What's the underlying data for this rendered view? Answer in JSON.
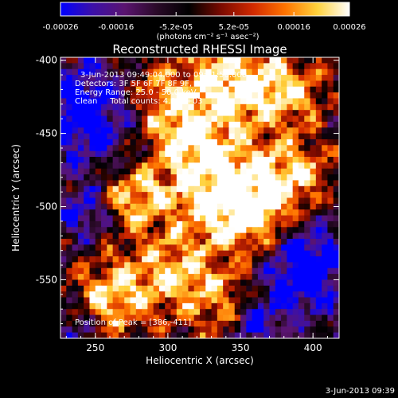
{
  "chart_data": {
    "type": "heatmap",
    "title": "Reconstructed RHESSI Image",
    "xlabel": "Heliocentric X (arcsec)",
    "ylabel": "Heliocentric Y (arcsec)",
    "xlim": [
      226,
      418
    ],
    "ylim": [
      -590,
      -398
    ],
    "x_ticks": [
      250,
      300,
      350,
      400
    ],
    "y_ticks": [
      -400,
      -450,
      -500,
      -550
    ],
    "colorbar": {
      "range": [
        -0.00026,
        0.00026
      ],
      "tick_values": [
        -0.00026,
        -0.00016,
        -5.2e-05,
        5.2e-05,
        0.00016,
        0.00026
      ],
      "tick_labels": [
        "-0.00026",
        "-0.00016",
        "-5.2e-05",
        "5.2e-05",
        "0.00016",
        "0.00026"
      ],
      "unit_label": "(photons cm⁻² s⁻¹ asec⁻²)",
      "colors": [
        "#0000ff",
        "#3c10a8",
        "#5a1470",
        "#2a0a28",
        "#000000",
        "#7a0a00",
        "#d22a00",
        "#ff7400",
        "#ffd23c",
        "#ffffff"
      ]
    },
    "annotations": {
      "time_range": "3-Jun-2013 09:49:04.000 to 09:51:56.000",
      "detectors": "Detectors: 3F 5F 6F 7F 8F 9F, Att 0",
      "energy": "Energy Range: 25.0 - 50.0 keV",
      "clean": "Clean     Total counts: 4.82E+03",
      "peak": "Position of Peak = [386,-411]"
    },
    "peak": [
      386,
      -411
    ],
    "grid": false
  },
  "footer": {
    "timestamp": "3-Jun-2013 09:39"
  }
}
